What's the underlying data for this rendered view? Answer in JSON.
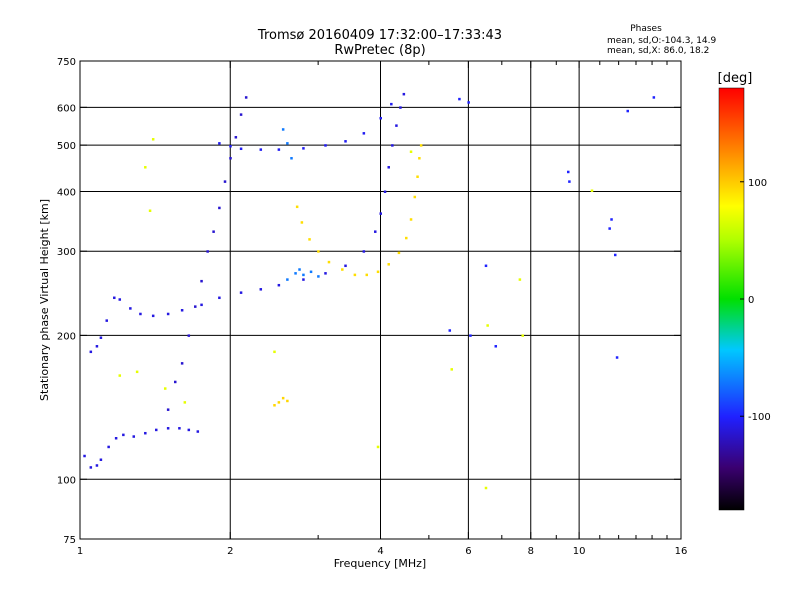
{
  "chart_data": {
    "type": "scatter",
    "title": "Tromsø 20160409 17:32:00–17:33:43",
    "subtitle": "RwPretec (8p)",
    "xlabel": "Frequency [MHz]",
    "ylabel": "Stationary phase Virtual Height [km]",
    "x_scale": "log",
    "y_scale": "log",
    "xlim": [
      1,
      16
    ],
    "ylim": [
      75,
      750
    ],
    "x_ticks": [
      1,
      2,
      4,
      6,
      8,
      10,
      16
    ],
    "x_tick_labels": [
      "1",
      "2",
      "4",
      "6",
      "8",
      "10",
      "16"
    ],
    "x_minor_ticks": [
      3,
      5,
      7,
      9,
      11,
      12,
      13,
      14,
      15
    ],
    "y_ticks": [
      75,
      100,
      200,
      300,
      400,
      500,
      600,
      750
    ],
    "y_tick_labels": [
      "75",
      "100",
      "200",
      "300",
      "400",
      "500",
      "600",
      "750"
    ],
    "grid": true,
    "phase_stats": {
      "header": "Phases",
      "o_line": "mean, sd,O:-104.3, 14.9",
      "x_line": "mean, sd,X:  86.0, 18.2"
    },
    "colorbar": {
      "label": "[deg]",
      "range": [
        -180,
        180
      ],
      "ticks": [
        100,
        0,
        -100
      ],
      "tick_labels": [
        "100",
        "0",
        "-100"
      ]
    },
    "traces": [
      {
        "phase": -110,
        "points": [
          [
            1.02,
            112
          ],
          [
            1.05,
            106
          ],
          [
            1.08,
            107
          ],
          [
            1.1,
            110
          ],
          [
            1.14,
            117
          ],
          [
            1.18,
            122
          ],
          [
            1.22,
            124
          ],
          [
            1.28,
            123
          ],
          [
            1.35,
            125
          ],
          [
            1.42,
            127
          ],
          [
            1.5,
            128
          ],
          [
            1.58,
            128
          ],
          [
            1.65,
            127
          ],
          [
            1.72,
            126
          ]
        ]
      },
      {
        "phase": -110,
        "points": [
          [
            1.05,
            185
          ],
          [
            1.08,
            190
          ],
          [
            1.1,
            198
          ],
          [
            1.13,
            215
          ],
          [
            1.17,
            240
          ],
          [
            1.2,
            238
          ],
          [
            1.26,
            228
          ],
          [
            1.32,
            222
          ],
          [
            1.4,
            220
          ],
          [
            1.5,
            222
          ],
          [
            1.6,
            226
          ],
          [
            1.75,
            232
          ],
          [
            1.9,
            240
          ],
          [
            2.1,
            246
          ],
          [
            2.3,
            250
          ],
          [
            2.5,
            255
          ],
          [
            2.8,
            262
          ],
          [
            3.1,
            270
          ],
          [
            3.4,
            280
          ],
          [
            3.7,
            300
          ],
          [
            3.9,
            330
          ],
          [
            4.0,
            360
          ],
          [
            4.08,
            400
          ],
          [
            4.15,
            450
          ],
          [
            4.22,
            500
          ],
          [
            4.3,
            550
          ],
          [
            4.38,
            600
          ],
          [
            4.45,
            640
          ]
        ]
      },
      {
        "phase": -105,
        "points": [
          [
            1.9,
            505
          ],
          [
            2.0,
            498
          ],
          [
            2.1,
            492
          ],
          [
            2.3,
            490
          ],
          [
            2.5,
            490
          ],
          [
            2.8,
            493
          ],
          [
            3.1,
            500
          ],
          [
            3.4,
            510
          ],
          [
            3.7,
            530
          ],
          [
            4.0,
            570
          ],
          [
            4.2,
            610
          ]
        ]
      },
      {
        "phase": -70,
        "points": [
          [
            2.55,
            540
          ],
          [
            2.6,
            505
          ],
          [
            2.65,
            470
          ],
          [
            2.7,
            270
          ],
          [
            2.8,
            268
          ],
          [
            2.9,
            272
          ],
          [
            3.0,
            266
          ],
          [
            2.6,
            262
          ],
          [
            2.75,
            275
          ]
        ]
      },
      {
        "phase": 92,
        "points": [
          [
            2.72,
            372
          ],
          [
            2.78,
            345
          ],
          [
            2.88,
            318
          ],
          [
            3.0,
            300
          ],
          [
            3.15,
            285
          ],
          [
            3.35,
            275
          ],
          [
            3.55,
            268
          ],
          [
            3.75,
            268
          ],
          [
            3.95,
            272
          ],
          [
            4.15,
            282
          ],
          [
            4.35,
            298
          ],
          [
            4.5,
            320
          ],
          [
            4.6,
            350
          ],
          [
            4.68,
            390
          ],
          [
            4.74,
            430
          ],
          [
            4.78,
            470
          ],
          [
            4.82,
            500
          ]
        ]
      },
      {
        "phase": -115,
        "points": [
          [
            1.5,
            140
          ],
          [
            1.55,
            160
          ],
          [
            1.6,
            175
          ],
          [
            1.65,
            200
          ],
          [
            1.7,
            230
          ],
          [
            1.75,
            260
          ],
          [
            1.8,
            300
          ],
          [
            1.85,
            330
          ],
          [
            1.9,
            370
          ],
          [
            1.95,
            420
          ],
          [
            2.0,
            470
          ],
          [
            2.05,
            520
          ],
          [
            2.1,
            580
          ],
          [
            2.15,
            630
          ]
        ]
      },
      {
        "phase": 95,
        "points": [
          [
            2.45,
            143
          ],
          [
            2.5,
            145
          ],
          [
            2.55,
            148
          ],
          [
            2.6,
            146
          ]
        ]
      },
      {
        "phase": 70,
        "points": [
          [
            1.4,
            515
          ],
          [
            1.35,
            450
          ],
          [
            1.38,
            365
          ],
          [
            1.2,
            165
          ],
          [
            1.3,
            168
          ],
          [
            2.45,
            185
          ],
          [
            3.95,
            117
          ],
          [
            5.55,
            170
          ],
          [
            6.5,
            96
          ],
          [
            6.55,
            210
          ],
          [
            7.6,
            262
          ],
          [
            7.7,
            200
          ],
          [
            10.6,
            402
          ],
          [
            4.6,
            485
          ],
          [
            1.48,
            155
          ],
          [
            1.62,
            145
          ]
        ]
      },
      {
        "phase": -100,
        "points": [
          [
            5.75,
            625
          ],
          [
            6.0,
            615
          ],
          [
            5.5,
            205
          ],
          [
            6.05,
            200
          ],
          [
            9.5,
            440
          ],
          [
            9.55,
            420
          ],
          [
            11.6,
            350
          ],
          [
            11.5,
            335
          ],
          [
            11.8,
            295
          ],
          [
            11.9,
            180
          ],
          [
            12.5,
            590
          ],
          [
            14.1,
            630
          ],
          [
            6.5,
            280
          ],
          [
            6.8,
            190
          ]
        ]
      }
    ]
  }
}
